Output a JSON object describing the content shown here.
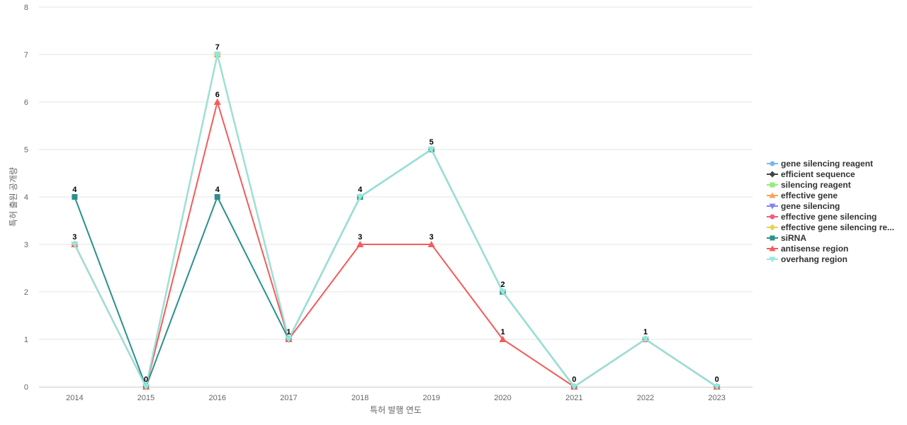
{
  "chart_data": {
    "type": "line",
    "title": "",
    "xlabel": "특허 발행 연도",
    "ylabel": "특허 출원 공개량",
    "ylim": [
      0,
      8
    ],
    "yticks": [
      0,
      1,
      2,
      3,
      4,
      5,
      6,
      7,
      8
    ],
    "categories": [
      "2014",
      "2015",
      "2016",
      "2017",
      "2018",
      "2019",
      "2020",
      "2021",
      "2022",
      "2023"
    ],
    "grid": "horizontal",
    "legend_position": "right",
    "series": [
      {
        "name": "gene silencing reagent",
        "color": "#7cb5ec",
        "marker": "circle",
        "values": [
          3,
          0,
          7,
          1,
          4,
          5,
          2,
          0,
          1,
          0
        ]
      },
      {
        "name": "efficient sequence",
        "color": "#434348",
        "marker": "diamond",
        "values": [
          3,
          0,
          7,
          1,
          4,
          5,
          2,
          0,
          1,
          0
        ]
      },
      {
        "name": "silencing reagent",
        "color": "#90ed7d",
        "marker": "square",
        "values": [
          3,
          0,
          7,
          1,
          4,
          5,
          2,
          0,
          1,
          0
        ]
      },
      {
        "name": "effective gene",
        "color": "#f7a35c",
        "marker": "triangle",
        "values": [
          3,
          0,
          7,
          1,
          4,
          5,
          2,
          0,
          1,
          0
        ]
      },
      {
        "name": "gene silencing",
        "color": "#8085e9",
        "marker": "triangle-down",
        "values": [
          3,
          0,
          7,
          1,
          4,
          5,
          2,
          0,
          1,
          0
        ]
      },
      {
        "name": "effective gene silencing",
        "color": "#f15c80",
        "marker": "circle",
        "values": [
          3,
          0,
          7,
          1,
          4,
          5,
          2,
          0,
          1,
          0
        ]
      },
      {
        "name": "effective gene silencing re...",
        "color": "#e4d354",
        "marker": "diamond",
        "values": [
          3,
          0,
          7,
          1,
          4,
          5,
          2,
          0,
          1,
          0
        ]
      },
      {
        "name": "siRNA",
        "color": "#2b908f",
        "marker": "square",
        "values": [
          4,
          0,
          4,
          1,
          4,
          5,
          2,
          0,
          1,
          0
        ]
      },
      {
        "name": "antisense region",
        "color": "#f45b5b",
        "marker": "triangle",
        "values": [
          3,
          0,
          6,
          1,
          3,
          3,
          1,
          0,
          1,
          0
        ]
      },
      {
        "name": "overhang region",
        "color": "#91e8e1",
        "marker": "triangle-down",
        "values": [
          3,
          0,
          7,
          1,
          4,
          5,
          2,
          0,
          1,
          0
        ]
      }
    ],
    "data_labels": [
      {
        "x": "2014",
        "text": "4",
        "y": 4
      },
      {
        "x": "2014",
        "text": "3",
        "y": 3
      },
      {
        "x": "2015",
        "text": "0",
        "y": 0
      },
      {
        "x": "2016",
        "text": "7",
        "y": 7
      },
      {
        "x": "2016",
        "text": "6",
        "y": 6
      },
      {
        "x": "2016",
        "text": "4",
        "y": 4
      },
      {
        "x": "2017",
        "text": "1",
        "y": 1
      },
      {
        "x": "2018",
        "text": "4",
        "y": 4
      },
      {
        "x": "2018",
        "text": "3",
        "y": 3
      },
      {
        "x": "2019",
        "text": "5",
        "y": 5
      },
      {
        "x": "2019",
        "text": "3",
        "y": 3
      },
      {
        "x": "2020",
        "text": "2",
        "y": 2
      },
      {
        "x": "2020",
        "text": "1",
        "y": 1
      },
      {
        "x": "2021",
        "text": "0",
        "y": 0
      },
      {
        "x": "2022",
        "text": "1",
        "y": 1
      },
      {
        "x": "2023",
        "text": "0",
        "y": 0
      }
    ]
  }
}
